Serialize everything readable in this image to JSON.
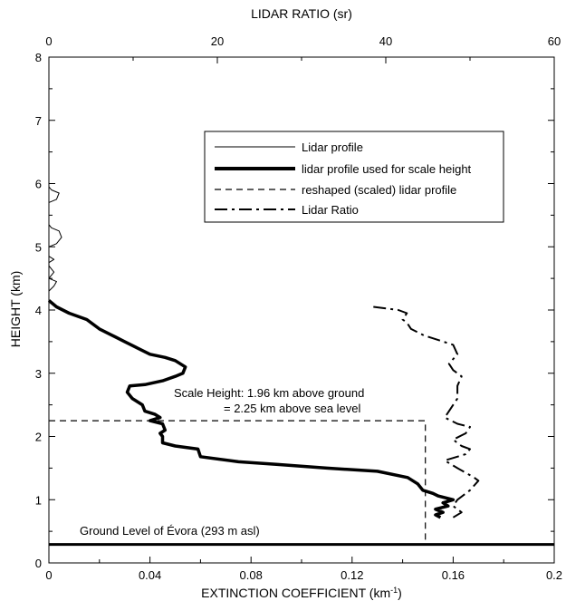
{
  "chart_data": {
    "type": "line",
    "top_axis_label": "LIDAR RATIO (sr)",
    "xlabel": "EXTINCTION COEFFICIENT (km",
    "xlabel_sup": "-1",
    "xlabel_end": ")",
    "ylabel": "HEIGHT (km)",
    "xlim": [
      0,
      0.2
    ],
    "x2lim": [
      0,
      60
    ],
    "ylim": [
      0,
      8
    ],
    "x_ticks": [
      "0",
      "0.04",
      "0.08",
      "0.12",
      "0.16",
      "0.2"
    ],
    "x2_ticks": [
      "0",
      "20",
      "40",
      "60"
    ],
    "y_ticks": [
      "0",
      "1",
      "2",
      "3",
      "4",
      "5",
      "6",
      "7",
      "8"
    ],
    "grid": false,
    "legend_position": "upper-right",
    "legend": [
      {
        "label": "Lidar profile",
        "style": "thin-solid"
      },
      {
        "label": "lidar profile used for scale height",
        "style": "thick-solid"
      },
      {
        "label": "reshaped (scaled) lidar profile",
        "style": "dashed"
      },
      {
        "label": "Lidar Ratio",
        "style": "dash-dot"
      }
    ],
    "annotations": {
      "scale_height_line1": "Scale Height: 1.96 km above ground",
      "scale_height_line2": "= 2.25 km above sea level",
      "ground": "Ground Level of Évora (293 m asl)"
    },
    "ground_level_km": 0.293,
    "scale_height_asl_km": 2.25,
    "series": [
      {
        "name": "Lidar profile",
        "axis": "bottom",
        "style": "thin-solid",
        "points": [
          [
            0.0,
            4.15
          ],
          [
            0.0,
            4.3
          ],
          [
            0.002,
            4.38
          ],
          [
            0.003,
            4.45
          ],
          [
            0.0,
            4.5
          ],
          [
            0.002,
            4.6
          ],
          [
            0.0,
            4.7
          ],
          [
            0.0,
            4.75
          ],
          [
            0.002,
            4.8
          ],
          [
            0.0,
            4.85
          ],
          [
            0.0,
            5.0
          ],
          [
            0.003,
            5.05
          ],
          [
            0.005,
            5.15
          ],
          [
            0.004,
            5.25
          ],
          [
            0.001,
            5.3
          ],
          [
            0.0,
            5.35
          ],
          [
            0.0,
            5.7
          ],
          [
            0.003,
            5.75
          ],
          [
            0.004,
            5.85
          ],
          [
            0.001,
            5.9
          ],
          [
            0.0,
            5.95
          ],
          [
            0.0,
            6.0
          ]
        ]
      },
      {
        "name": "lidar profile used for scale height",
        "axis": "bottom",
        "style": "thick-solid",
        "points": [
          [
            0.155,
            0.72
          ],
          [
            0.153,
            0.76
          ],
          [
            0.156,
            0.8
          ],
          [
            0.153,
            0.85
          ],
          [
            0.158,
            0.9
          ],
          [
            0.156,
            0.95
          ],
          [
            0.16,
            1.0
          ],
          [
            0.157,
            1.03
          ],
          [
            0.154,
            1.06
          ],
          [
            0.152,
            1.1
          ],
          [
            0.148,
            1.15
          ],
          [
            0.146,
            1.25
          ],
          [
            0.142,
            1.35
          ],
          [
            0.13,
            1.45
          ],
          [
            0.11,
            1.5
          ],
          [
            0.09,
            1.56
          ],
          [
            0.075,
            1.6
          ],
          [
            0.06,
            1.68
          ],
          [
            0.059,
            1.8
          ],
          [
            0.05,
            1.85
          ],
          [
            0.045,
            1.9
          ],
          [
            0.045,
            2.0
          ],
          [
            0.044,
            2.05
          ],
          [
            0.046,
            2.1
          ],
          [
            0.045,
            2.2
          ],
          [
            0.04,
            2.25
          ],
          [
            0.044,
            2.3
          ],
          [
            0.042,
            2.35
          ],
          [
            0.038,
            2.4
          ],
          [
            0.037,
            2.5
          ],
          [
            0.033,
            2.6
          ],
          [
            0.031,
            2.7
          ],
          [
            0.032,
            2.8
          ],
          [
            0.038,
            2.82
          ],
          [
            0.045,
            2.88
          ],
          [
            0.05,
            2.95
          ],
          [
            0.053,
            3.0
          ],
          [
            0.054,
            3.1
          ],
          [
            0.052,
            3.15
          ],
          [
            0.05,
            3.2
          ],
          [
            0.046,
            3.25
          ],
          [
            0.04,
            3.3
          ],
          [
            0.035,
            3.4
          ],
          [
            0.03,
            3.5
          ],
          [
            0.025,
            3.6
          ],
          [
            0.02,
            3.7
          ],
          [
            0.015,
            3.85
          ],
          [
            0.008,
            3.95
          ],
          [
            0.003,
            4.05
          ],
          [
            0.0,
            4.15
          ]
        ]
      },
      {
        "name": "reshaped (scaled) lidar profile",
        "axis": "bottom",
        "style": "dashed",
        "points": [
          [
            0.0,
            2.25
          ],
          [
            0.149,
            2.25
          ],
          [
            0.149,
            0.3
          ]
        ]
      },
      {
        "name": "Lidar Ratio",
        "axis": "top",
        "style": "dash-dot",
        "points": [
          [
            48.0,
            0.72
          ],
          [
            49.0,
            0.8
          ],
          [
            48.0,
            0.9
          ],
          [
            48.5,
            1.0
          ],
          [
            50.0,
            1.15
          ],
          [
            51.0,
            1.3
          ],
          [
            50.5,
            1.35
          ],
          [
            48.5,
            1.5
          ],
          [
            47.0,
            1.62
          ],
          [
            49.5,
            1.72
          ],
          [
            50.0,
            1.8
          ],
          [
            49.0,
            1.85
          ],
          [
            48.0,
            1.95
          ],
          [
            49.5,
            2.05
          ],
          [
            50.0,
            2.15
          ],
          [
            48.5,
            2.2
          ],
          [
            47.0,
            2.3
          ],
          [
            47.5,
            2.4
          ],
          [
            48.5,
            2.6
          ],
          [
            48.5,
            2.8
          ],
          [
            49.0,
            2.95
          ],
          [
            48.0,
            3.05
          ],
          [
            47.5,
            3.15
          ],
          [
            48.5,
            3.3
          ],
          [
            48.0,
            3.45
          ],
          [
            44.5,
            3.6
          ],
          [
            43.0,
            3.7
          ],
          [
            42.5,
            3.8
          ],
          [
            42.0,
            3.85
          ],
          [
            42.5,
            3.95
          ],
          [
            41.5,
            4.0
          ],
          [
            38.5,
            4.05
          ]
        ]
      }
    ]
  }
}
